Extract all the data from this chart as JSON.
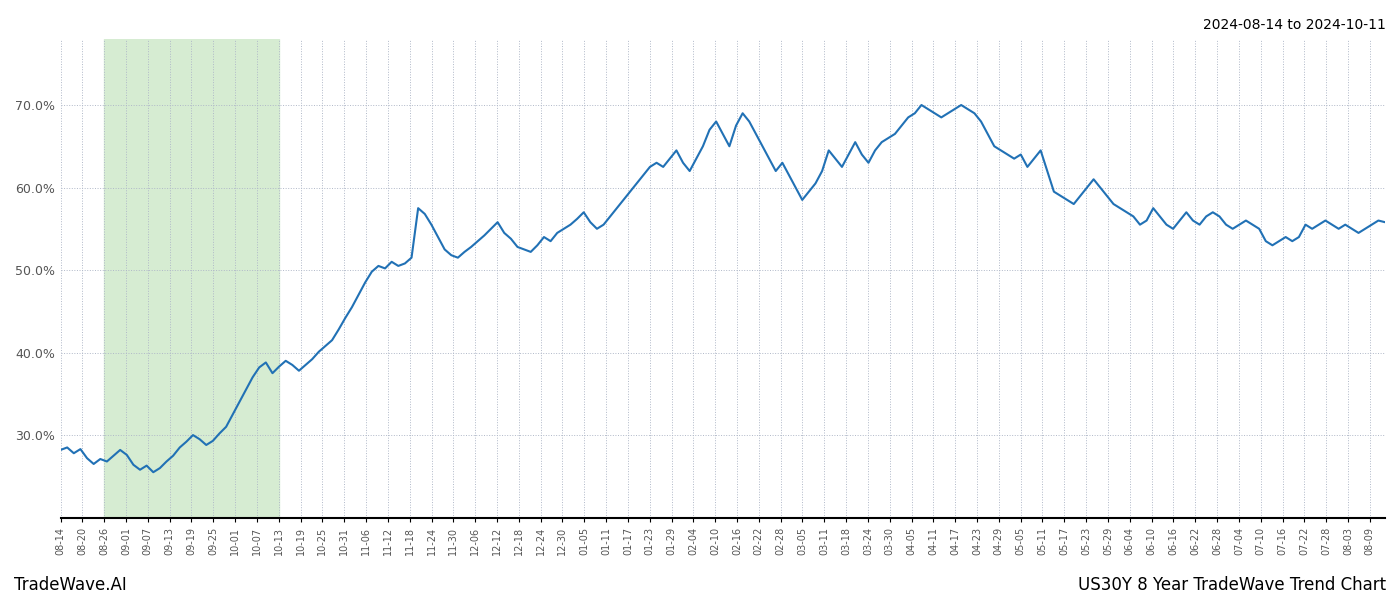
{
  "title_top_right": "2024-08-14 to 2024-10-11",
  "title_bottom_left": "TradeWave.AI",
  "title_bottom_right": "US30Y 8 Year TradeWave Trend Chart",
  "line_color": "#2171b5",
  "line_width": 1.5,
  "background_color": "#ffffff",
  "grid_color": "#b0b8c8",
  "highlight_color": "#d6ecd2",
  "ylim": [
    20,
    78
  ],
  "yticks": [
    30.0,
    40.0,
    50.0,
    60.0,
    70.0
  ],
  "x_labels": [
    "08-14",
    "08-20",
    "08-26",
    "09-01",
    "09-07",
    "09-13",
    "09-19",
    "09-25",
    "10-01",
    "10-07",
    "10-13",
    "10-19",
    "10-25",
    "10-31",
    "11-06",
    "11-12",
    "11-18",
    "11-24",
    "11-30",
    "12-06",
    "12-12",
    "12-18",
    "12-24",
    "12-30",
    "01-05",
    "01-11",
    "01-17",
    "01-23",
    "01-29",
    "02-04",
    "02-10",
    "02-16",
    "02-22",
    "02-28",
    "03-05",
    "03-11",
    "03-18",
    "03-24",
    "03-30",
    "04-05",
    "04-11",
    "04-17",
    "04-23",
    "04-29",
    "05-05",
    "05-11",
    "05-17",
    "05-23",
    "05-29",
    "06-04",
    "06-10",
    "06-16",
    "06-22",
    "06-28",
    "07-04",
    "07-10",
    "07-16",
    "07-22",
    "07-28",
    "08-03",
    "08-09"
  ],
  "highlight_x_start_label": "08-26",
  "highlight_x_end_label": "10-13",
  "y_values": [
    28.2,
    28.5,
    27.8,
    28.3,
    27.2,
    26.5,
    27.1,
    26.8,
    27.5,
    28.2,
    27.6,
    26.4,
    25.8,
    26.3,
    25.5,
    26.0,
    26.8,
    27.5,
    28.5,
    29.2,
    30.0,
    29.5,
    28.8,
    29.3,
    30.2,
    31.0,
    32.5,
    34.0,
    35.5,
    37.0,
    38.2,
    38.8,
    37.5,
    38.3,
    39.0,
    38.5,
    37.8,
    38.5,
    39.2,
    40.1,
    40.8,
    41.5,
    42.8,
    44.2,
    45.5,
    47.0,
    48.5,
    49.8,
    50.5,
    50.2,
    51.0,
    50.5,
    50.8,
    51.5,
    57.5,
    56.8,
    55.5,
    54.0,
    52.5,
    51.8,
    51.5,
    52.2,
    52.8,
    53.5,
    54.2,
    55.0,
    55.8,
    54.5,
    53.8,
    52.8,
    52.5,
    52.2,
    53.0,
    54.0,
    53.5,
    54.5,
    55.0,
    55.5,
    56.2,
    57.0,
    55.8,
    55.0,
    55.5,
    56.5,
    57.5,
    58.5,
    59.5,
    60.5,
    61.5,
    62.5,
    63.0,
    62.5,
    63.5,
    64.5,
    63.0,
    62.0,
    63.5,
    65.0,
    67.0,
    68.0,
    66.5,
    65.0,
    67.5,
    69.0,
    68.0,
    66.5,
    65.0,
    63.5,
    62.0,
    63.0,
    61.5,
    60.0,
    58.5,
    59.5,
    60.5,
    62.0,
    64.5,
    63.5,
    62.5,
    64.0,
    65.5,
    64.0,
    63.0,
    64.5,
    65.5,
    66.0,
    66.5,
    67.5,
    68.5,
    69.0,
    70.0,
    69.5,
    69.0,
    68.5,
    69.0,
    69.5,
    70.0,
    69.5,
    69.0,
    68.0,
    66.5,
    65.0,
    64.5,
    64.0,
    63.5,
    64.0,
    62.5,
    63.5,
    64.5,
    62.0,
    59.5,
    59.0,
    58.5,
    58.0,
    59.0,
    60.0,
    61.0,
    60.0,
    59.0,
    58.0,
    57.5,
    57.0,
    56.5,
    55.5,
    56.0,
    57.5,
    56.5,
    55.5,
    55.0,
    56.0,
    57.0,
    56.0,
    55.5,
    56.5,
    57.0,
    56.5,
    55.5,
    55.0,
    55.5,
    56.0,
    55.5,
    55.0,
    53.5,
    53.0,
    53.5,
    54.0,
    53.5,
    54.0,
    55.5,
    55.0,
    55.5,
    56.0,
    55.5,
    55.0,
    55.5,
    55.0,
    54.5,
    55.0,
    55.5,
    56.0,
    55.8
  ]
}
